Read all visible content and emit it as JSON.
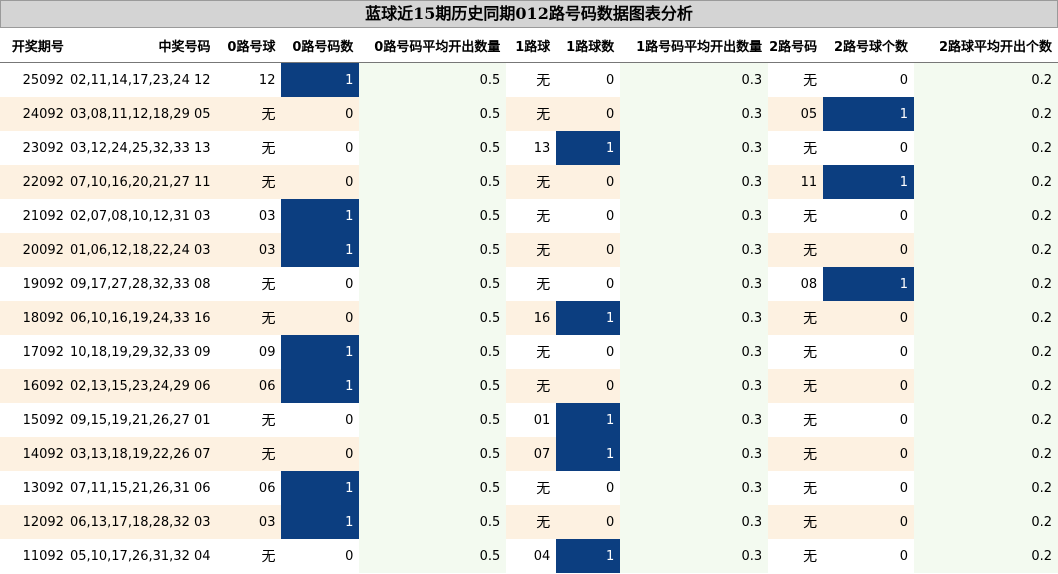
{
  "title": "蓝球近15期历史同期012路号码数据图表分析",
  "colors": {
    "header_bg": "#d4d4d4",
    "hit_cell": "#0c3e80",
    "even_row": "#fdf1e1",
    "green_col": "#f3faf0"
  },
  "chart_data": {
    "type": "table",
    "columns": [
      "开奖期号",
      "中奖号码",
      "0路号球",
      "0路号码数",
      "0路号码平均开出数量",
      "1路球",
      "1路球数",
      "1路号码平均开出数量",
      "2路号码",
      "2路号球个数",
      "2路球平均开出个数"
    ],
    "rows": [
      [
        "25092",
        "02,11,14,17,23,24 12",
        "12",
        "1",
        "0.5",
        "无",
        "0",
        "0.3",
        "无",
        "0",
        "0.2"
      ],
      [
        "24092",
        "03,08,11,12,18,29 05",
        "无",
        "0",
        "0.5",
        "无",
        "0",
        "0.3",
        "05",
        "1",
        "0.2"
      ],
      [
        "23092",
        "03,12,24,25,32,33 13",
        "无",
        "0",
        "0.5",
        "13",
        "1",
        "0.3",
        "无",
        "0",
        "0.2"
      ],
      [
        "22092",
        "07,10,16,20,21,27 11",
        "无",
        "0",
        "0.5",
        "无",
        "0",
        "0.3",
        "11",
        "1",
        "0.2"
      ],
      [
        "21092",
        "02,07,08,10,12,31 03",
        "03",
        "1",
        "0.5",
        "无",
        "0",
        "0.3",
        "无",
        "0",
        "0.2"
      ],
      [
        "20092",
        "01,06,12,18,22,24 03",
        "03",
        "1",
        "0.5",
        "无",
        "0",
        "0.3",
        "无",
        "0",
        "0.2"
      ],
      [
        "19092",
        "09,17,27,28,32,33 08",
        "无",
        "0",
        "0.5",
        "无",
        "0",
        "0.3",
        "08",
        "1",
        "0.2"
      ],
      [
        "18092",
        "06,10,16,19,24,33 16",
        "无",
        "0",
        "0.5",
        "16",
        "1",
        "0.3",
        "无",
        "0",
        "0.2"
      ],
      [
        "17092",
        "10,18,19,29,32,33 09",
        "09",
        "1",
        "0.5",
        "无",
        "0",
        "0.3",
        "无",
        "0",
        "0.2"
      ],
      [
        "16092",
        "02,13,15,23,24,29 06",
        "06",
        "1",
        "0.5",
        "无",
        "0",
        "0.3",
        "无",
        "0",
        "0.2"
      ],
      [
        "15092",
        "09,15,19,21,26,27 01",
        "无",
        "0",
        "0.5",
        "01",
        "1",
        "0.3",
        "无",
        "0",
        "0.2"
      ],
      [
        "14092",
        "03,13,18,19,22,26 07",
        "无",
        "0",
        "0.5",
        "07",
        "1",
        "0.3",
        "无",
        "0",
        "0.2"
      ],
      [
        "13092",
        "07,11,15,21,26,31 06",
        "06",
        "1",
        "0.5",
        "无",
        "0",
        "0.3",
        "无",
        "0",
        "0.2"
      ],
      [
        "12092",
        "06,13,17,18,28,32 03",
        "03",
        "1",
        "0.5",
        "无",
        "0",
        "0.3",
        "无",
        "0",
        "0.2"
      ],
      [
        "11092",
        "05,10,17,26,31,32 04",
        "无",
        "0",
        "0.5",
        "04",
        "1",
        "0.3",
        "无",
        "0",
        "0.2"
      ]
    ]
  }
}
